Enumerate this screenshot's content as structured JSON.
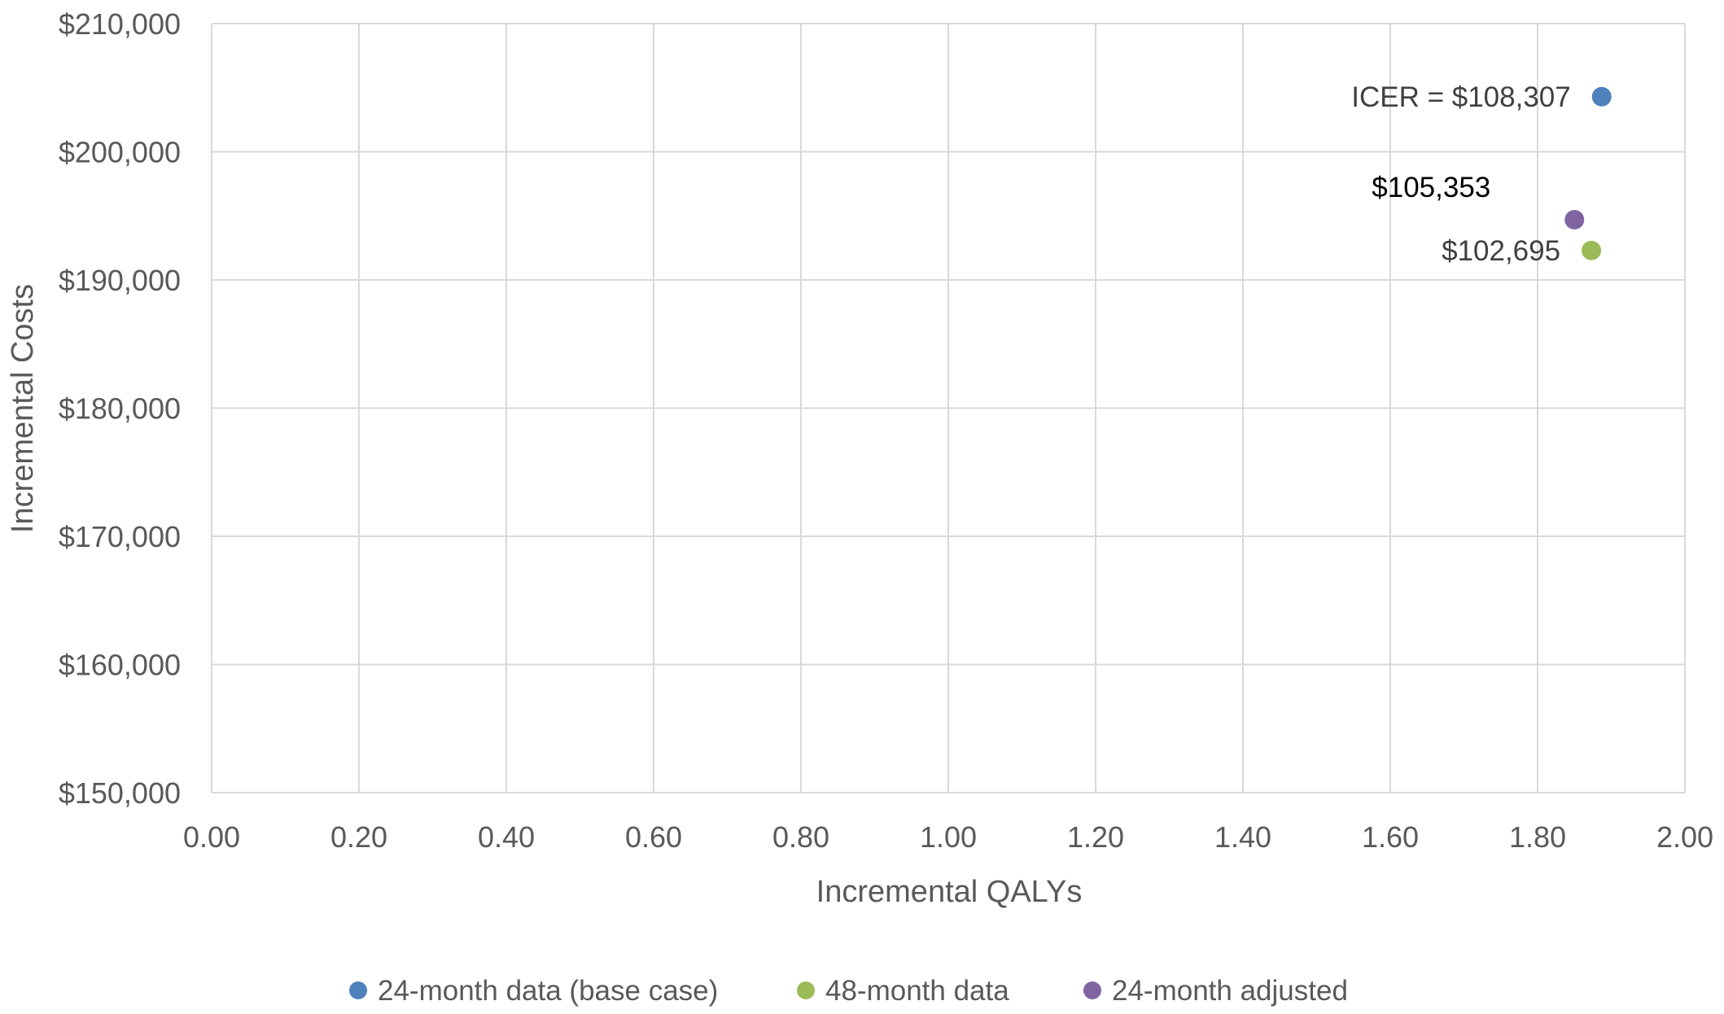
{
  "chart_data": {
    "type": "scatter",
    "title": "",
    "xlabel": "Incremental QALYs",
    "ylabel": "Incremental Costs",
    "xlim": [
      0,
      2
    ],
    "ylim": [
      150000,
      210000
    ],
    "grid": true,
    "legend_position": "bottom",
    "x_ticks": [
      "0.00",
      "0.20",
      "0.40",
      "0.60",
      "0.80",
      "1.00",
      "1.20",
      "1.40",
      "1.60",
      "1.80",
      "2.00"
    ],
    "y_ticks": [
      "$150,000",
      "$160,000",
      "$170,000",
      "$180,000",
      "$190,000",
      "$200,000",
      "$210,000"
    ],
    "series": [
      {
        "name": "24-month data (base case)",
        "color": "#4f81bd",
        "x": 1.887,
        "y": 204300,
        "label": "ICER = $108,307"
      },
      {
        "name": "48-month data",
        "color": "#9bbb59",
        "x": 1.873,
        "y": 192300,
        "label": "$102,695"
      },
      {
        "name": "24-month adjusted",
        "color": "#8064a2",
        "x": 1.85,
        "y": 194700,
        "label": "$105,353"
      }
    ]
  }
}
